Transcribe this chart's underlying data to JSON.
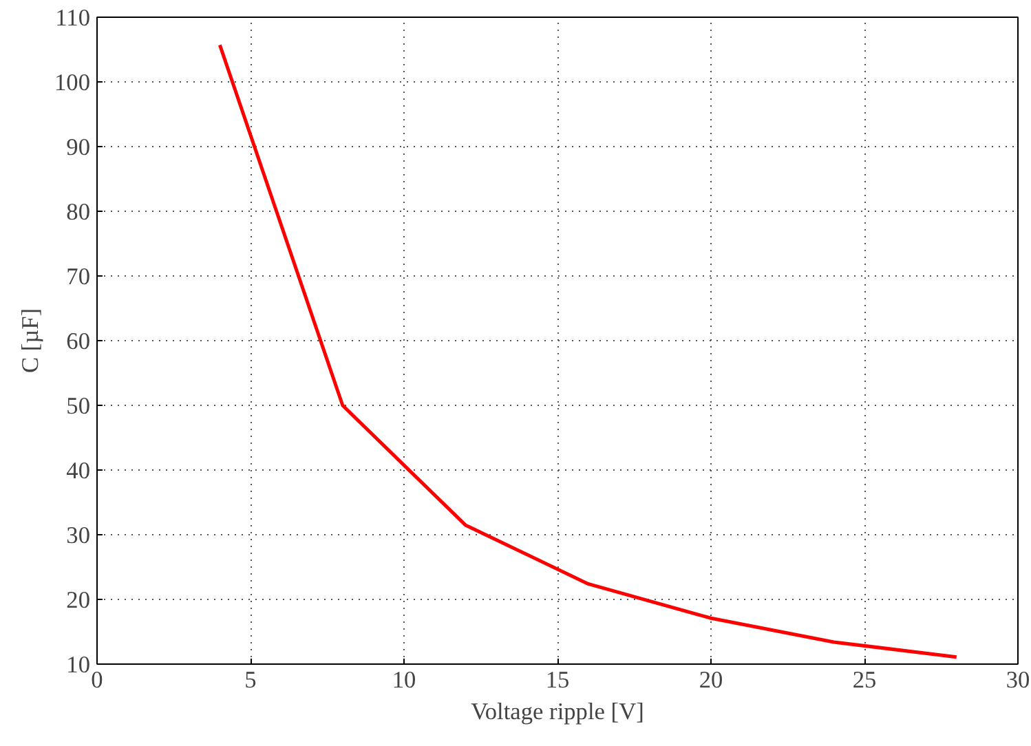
{
  "chart_data": {
    "type": "line",
    "xlabel": "Voltage ripple [V]",
    "ylabel": "C [µF]",
    "x": [
      4,
      8,
      12,
      16,
      20,
      24,
      28
    ],
    "series": [
      {
        "color": "#ff0000",
        "values": [
          105.7,
          50,
          31.5,
          22.4,
          17.1,
          13.4,
          11.1
        ]
      }
    ],
    "xlim": [
      0,
      30
    ],
    "ylim": [
      10,
      110
    ],
    "xticks": [
      0,
      5,
      10,
      15,
      20,
      25,
      30
    ],
    "yticks": [
      10,
      20,
      30,
      40,
      50,
      60,
      70,
      80,
      90,
      100,
      110
    ],
    "grid": true,
    "marker": "none",
    "line_style": "solid"
  }
}
